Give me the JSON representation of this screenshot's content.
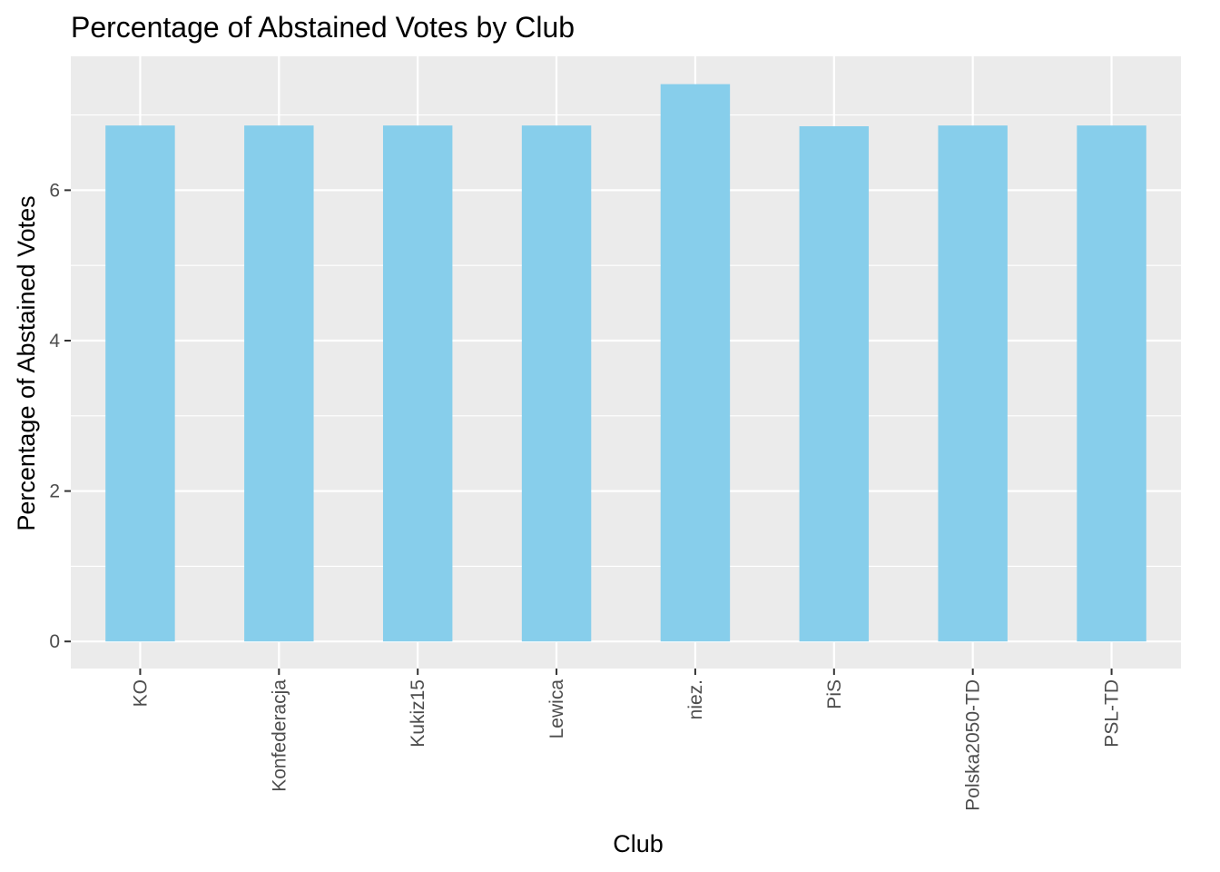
{
  "chart_data": {
    "type": "bar",
    "title": "Percentage of Abstained Votes by Club",
    "xlabel": "Club",
    "ylabel": "Percentage of Abstained Votes",
    "categories": [
      "KO",
      "Konfederacja",
      "Kukiz15",
      "Lewica",
      "niez.",
      "PiS",
      "Polska2050-TD",
      "PSL-TD"
    ],
    "values": [
      6.86,
      6.86,
      6.86,
      6.86,
      7.41,
      6.85,
      6.86,
      6.86
    ],
    "yticks": [
      "0",
      "2",
      "4",
      "6"
    ],
    "ylim": [
      -0.36,
      7.78
    ],
    "grid": true,
    "legend": "none",
    "colors": {
      "bar": "#87ceeb",
      "panel": "#ebebeb",
      "grid": "#ffffff",
      "tick_text": "#4d4d4d"
    }
  }
}
